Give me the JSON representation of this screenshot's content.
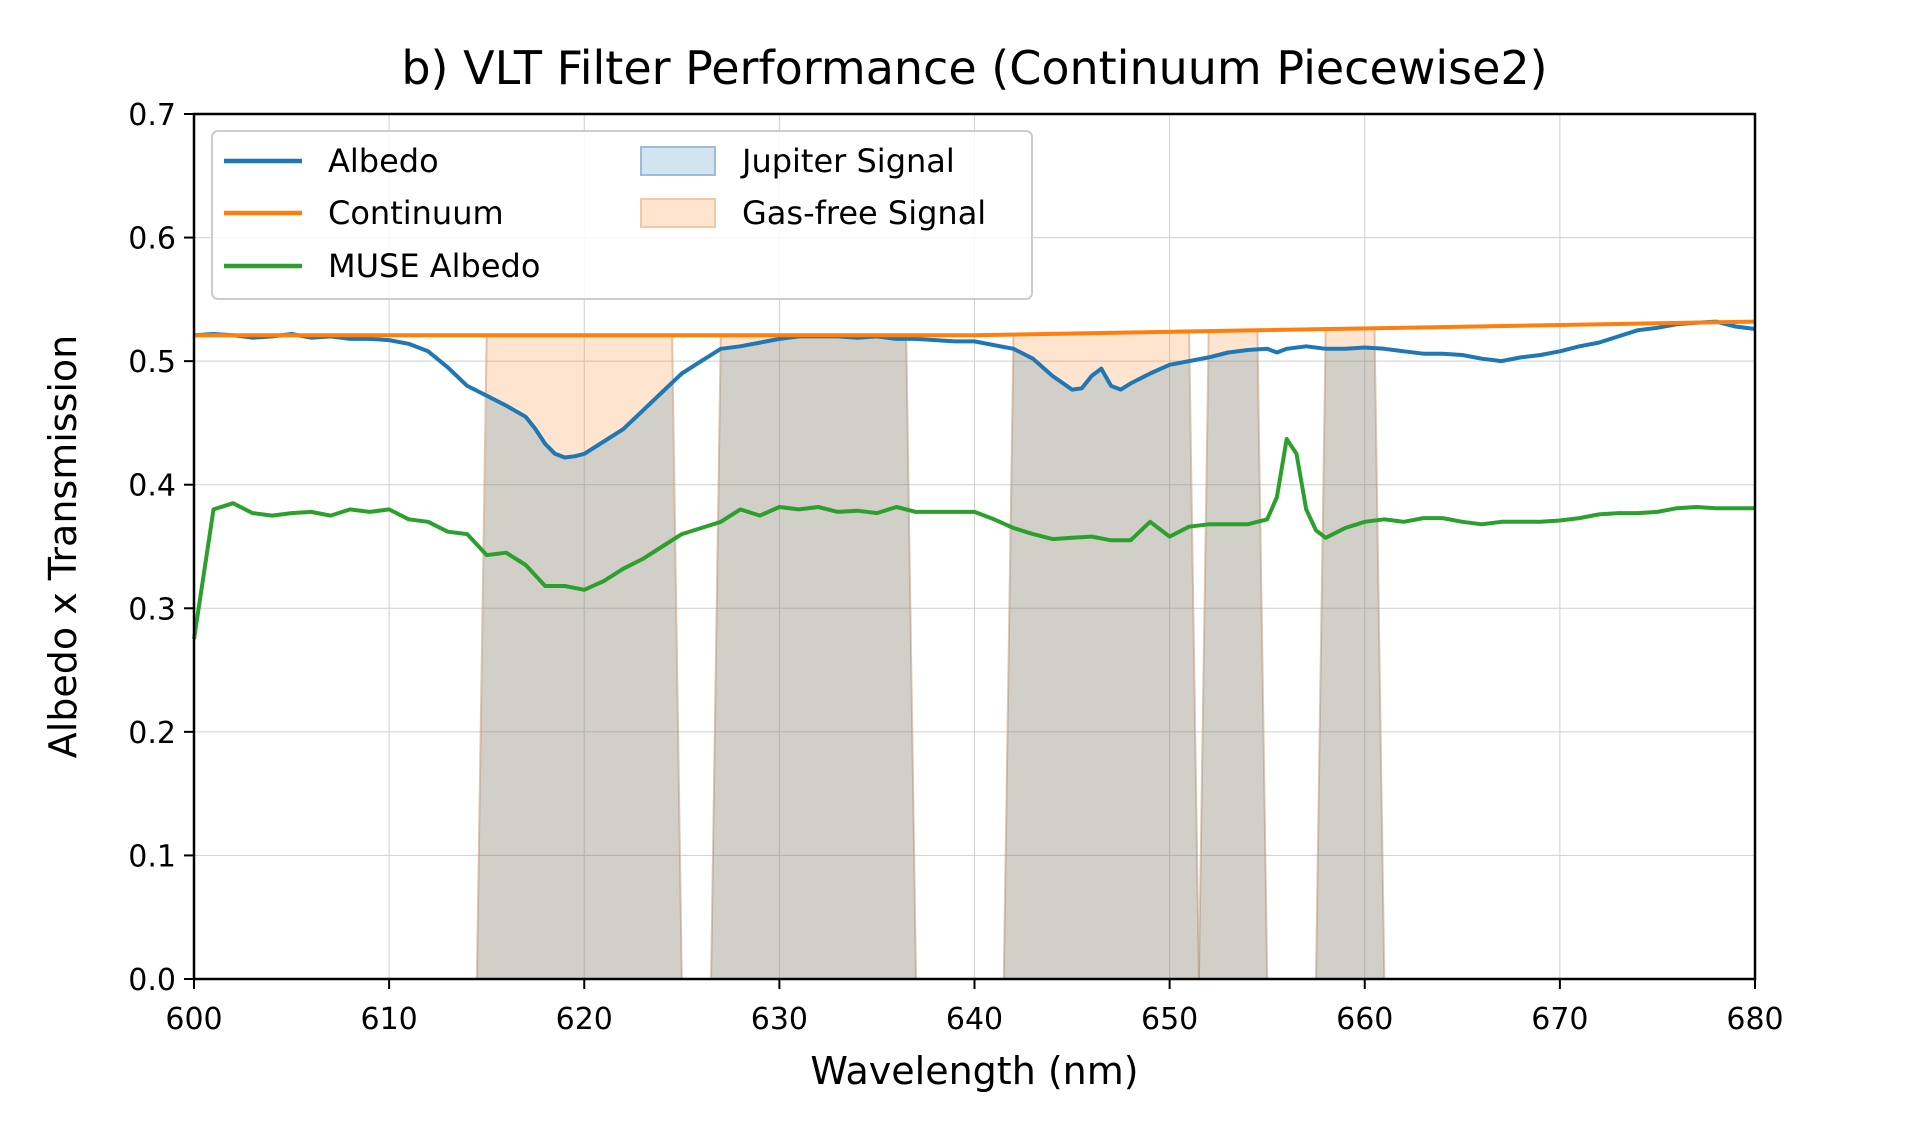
{
  "chart_data": {
    "type": "line",
    "title": "b) VLT Filter Performance (Continuum Piecewise2)",
    "xlabel": "Wavelength (nm)",
    "ylabel": "Albedo x Transmission",
    "xlim": [
      600,
      680
    ],
    "ylim": [
      0,
      0.7
    ],
    "xticks": [
      600,
      610,
      620,
      630,
      640,
      650,
      660,
      670,
      680
    ],
    "yticks": [
      0.0,
      0.1,
      0.2,
      0.3,
      0.4,
      0.5,
      0.6,
      0.7
    ],
    "xtick_labels": [
      "600",
      "610",
      "620",
      "630",
      "640",
      "650",
      "660",
      "670",
      "680"
    ],
    "ytick_labels": [
      "0.0",
      "0.1",
      "0.2",
      "0.3",
      "0.4",
      "0.5",
      "0.6",
      "0.7"
    ],
    "grid": true,
    "legend_position": "top-left",
    "legend": [
      "Albedo",
      "Continuum",
      "MUSE Albedo",
      "Jupiter Signal",
      "Gas-free Signal"
    ],
    "colors": {
      "albedo": "#1f77b4",
      "continuum": "#ff7f0e",
      "muse": "#2ca02c",
      "jupiter_fill": "#1f77b4",
      "gasfree_fill": "#ff7f0e"
    },
    "series": [
      {
        "name": "Albedo",
        "x": [
          600,
          601,
          602,
          603,
          604,
          605,
          606,
          607,
          608,
          609,
          610,
          611,
          612,
          613,
          614,
          615,
          616,
          617,
          617.5,
          618,
          618.5,
          619,
          619.5,
          620,
          621,
          622,
          623,
          624,
          625,
          626,
          627,
          628,
          629,
          630,
          631,
          632,
          633,
          634,
          635,
          636,
          637,
          638,
          639,
          640,
          641,
          642,
          643,
          644,
          645,
          645.5,
          646,
          646.5,
          647,
          647.5,
          648,
          649,
          650,
          651,
          652,
          653,
          654,
          655,
          655.5,
          656,
          657,
          658,
          659,
          660,
          661,
          662,
          663,
          664,
          665,
          666,
          667,
          668,
          669,
          670,
          671,
          672,
          673,
          674,
          675,
          676,
          677,
          678,
          679,
          680
        ],
        "y": [
          0.521,
          0.522,
          0.521,
          0.519,
          0.52,
          0.522,
          0.519,
          0.52,
          0.518,
          0.518,
          0.517,
          0.514,
          0.508,
          0.495,
          0.48,
          0.472,
          0.464,
          0.455,
          0.445,
          0.433,
          0.425,
          0.422,
          0.423,
          0.425,
          0.435,
          0.445,
          0.46,
          0.475,
          0.49,
          0.5,
          0.51,
          0.512,
          0.515,
          0.518,
          0.52,
          0.52,
          0.52,
          0.519,
          0.52,
          0.518,
          0.518,
          0.517,
          0.516,
          0.516,
          0.513,
          0.51,
          0.502,
          0.488,
          0.477,
          0.478,
          0.488,
          0.494,
          0.48,
          0.477,
          0.482,
          0.49,
          0.497,
          0.5,
          0.503,
          0.507,
          0.509,
          0.51,
          0.507,
          0.51,
          0.512,
          0.51,
          0.51,
          0.511,
          0.51,
          0.508,
          0.506,
          0.506,
          0.505,
          0.502,
          0.5,
          0.503,
          0.505,
          0.508,
          0.512,
          0.515,
          0.52,
          0.525,
          0.527,
          0.53,
          0.531,
          0.532,
          0.528,
          0.526
        ]
      },
      {
        "name": "Continuum",
        "x": [
          600,
          640,
          680
        ],
        "y": [
          0.521,
          0.521,
          0.532
        ]
      },
      {
        "name": "MUSE Albedo",
        "x": [
          600,
          601,
          602,
          603,
          604,
          605,
          606,
          607,
          608,
          609,
          610,
          611,
          612,
          613,
          614,
          615,
          616,
          617,
          618,
          619,
          620,
          621,
          622,
          623,
          624,
          625,
          626,
          627,
          628,
          629,
          630,
          631,
          632,
          633,
          634,
          635,
          636,
          637,
          638,
          639,
          640,
          641,
          642,
          643,
          644,
          645,
          646,
          647,
          648,
          649,
          650,
          651,
          652,
          653,
          654,
          655,
          655.5,
          656,
          656.5,
          657,
          657.5,
          658,
          659,
          660,
          661,
          662,
          663,
          664,
          665,
          666,
          667,
          668,
          669,
          670,
          671,
          672,
          673,
          674,
          675,
          676,
          677,
          678,
          679,
          680
        ],
        "y": [
          0.275,
          0.38,
          0.385,
          0.377,
          0.375,
          0.377,
          0.378,
          0.375,
          0.38,
          0.378,
          0.38,
          0.372,
          0.37,
          0.362,
          0.36,
          0.343,
          0.345,
          0.335,
          0.318,
          0.318,
          0.315,
          0.322,
          0.332,
          0.34,
          0.35,
          0.36,
          0.365,
          0.37,
          0.38,
          0.375,
          0.382,
          0.38,
          0.382,
          0.378,
          0.379,
          0.377,
          0.382,
          0.378,
          0.378,
          0.378,
          0.378,
          0.372,
          0.365,
          0.36,
          0.356,
          0.357,
          0.358,
          0.355,
          0.355,
          0.37,
          0.358,
          0.366,
          0.368,
          0.368,
          0.368,
          0.372,
          0.39,
          0.437,
          0.425,
          0.38,
          0.363,
          0.357,
          0.365,
          0.37,
          0.372,
          0.37,
          0.373,
          0.373,
          0.37,
          0.368,
          0.37,
          0.37,
          0.37,
          0.371,
          0.373,
          0.376,
          0.377,
          0.377,
          0.378,
          0.381,
          0.382,
          0.381,
          0.381,
          0.381
        ]
      }
    ],
    "filter_bands": [
      {
        "band": [
          614.5,
          625.0
        ],
        "top": [
          615.0,
          624.5
        ]
      },
      {
        "band": [
          626.5,
          637.0
        ],
        "top": [
          627.0,
          636.5
        ]
      },
      {
        "band": [
          641.5,
          651.5
        ],
        "top": [
          642.0,
          651.0
        ]
      },
      {
        "band": [
          651.5,
          655.0
        ],
        "top": [
          652.0,
          654.5
        ]
      },
      {
        "band": [
          657.5,
          661.0
        ],
        "top": [
          658.0,
          660.5
        ]
      }
    ]
  }
}
